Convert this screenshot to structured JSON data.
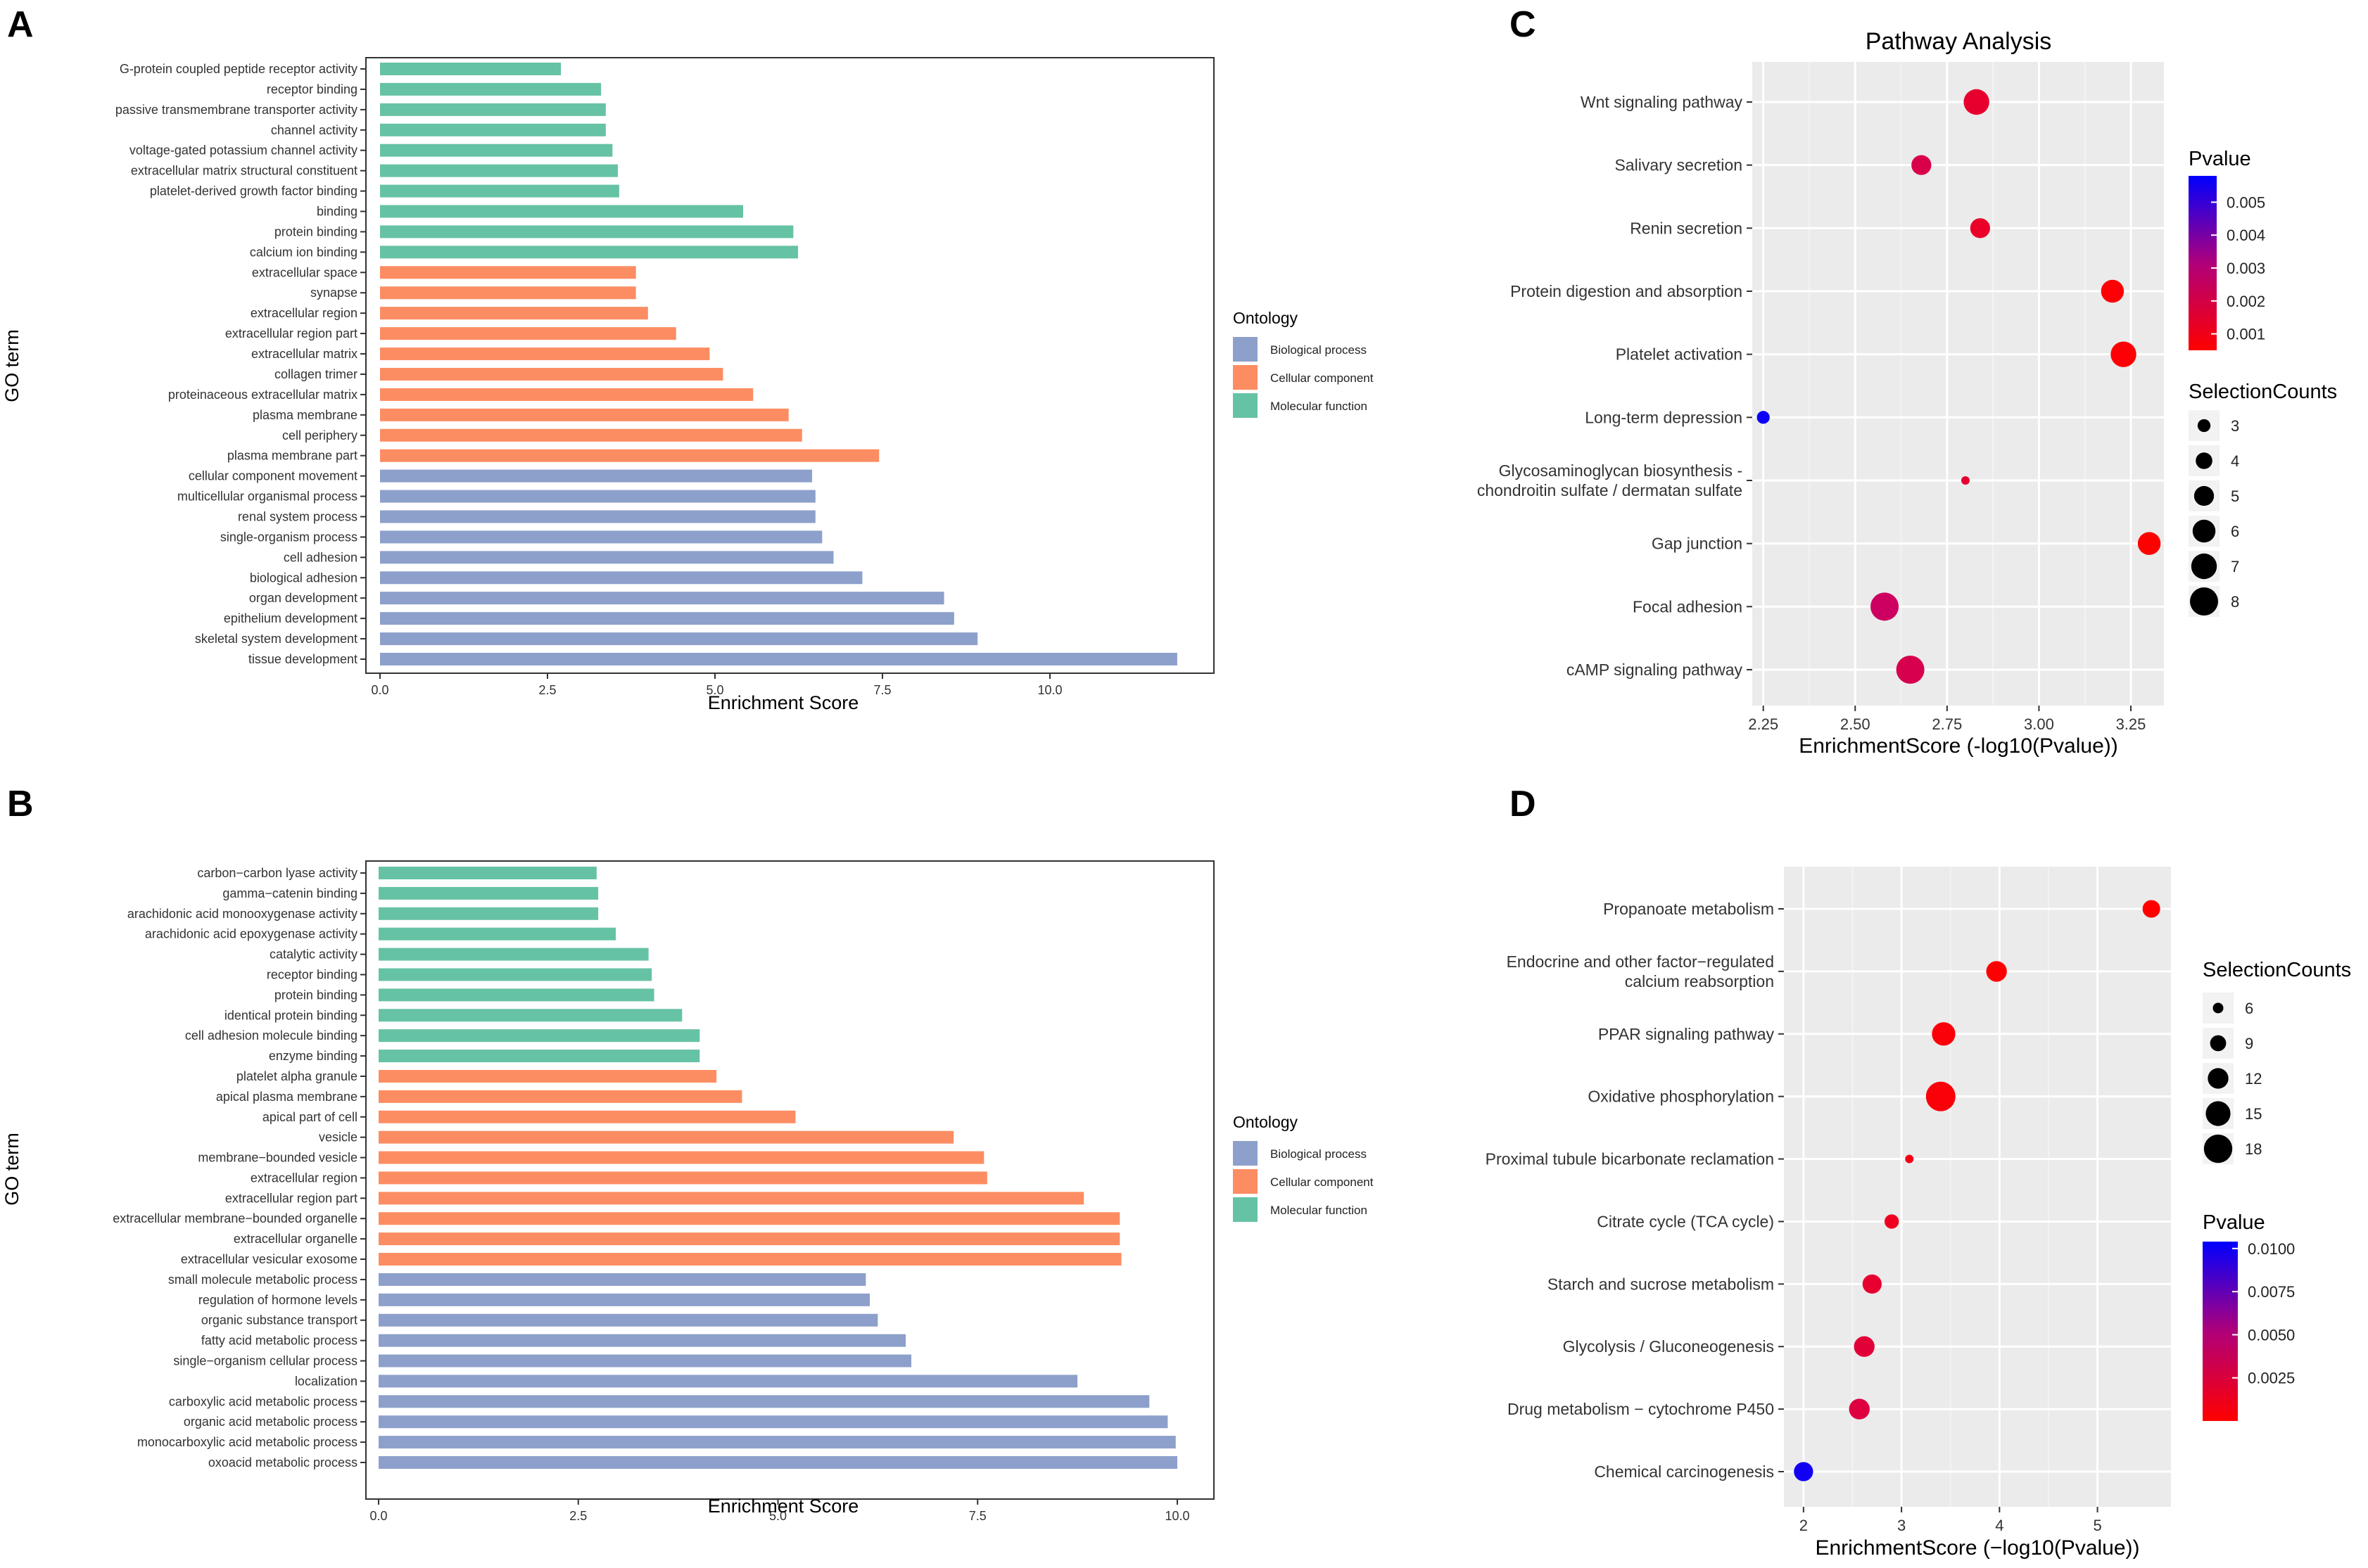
{
  "colors": {
    "biological_process": "#8da0cb",
    "cellular_component": "#fc8d62",
    "molecular_function": "#66c2a5",
    "panel_bg": "#ebebeb",
    "grid_major": "#ffffff",
    "pvalue_low": "#ff0000",
    "pvalue_high": "#0000ff"
  },
  "chart_data": [
    {
      "panel": "A",
      "type": "bar",
      "orientation": "horizontal",
      "xlabel": "Enrichment Score",
      "ylabel": "GO term",
      "xlim": [
        0,
        12
      ],
      "xticks": [
        "0.0",
        "2.5",
        "5.0",
        "7.5",
        "10.0"
      ],
      "xtick_values": [
        0,
        2.5,
        5,
        7.5,
        10
      ],
      "legend": {
        "title": "Ontology",
        "items": [
          {
            "label": "Biological process",
            "key": "biological_process"
          },
          {
            "label": "Cellular component",
            "key": "cellular_component"
          },
          {
            "label": "Molecular function",
            "key": "molecular_function"
          }
        ]
      },
      "bars": [
        {
          "term": "G-protein coupled peptide receptor activity",
          "value": 2.7,
          "ontology": "molecular_function"
        },
        {
          "term": "receptor binding",
          "value": 3.3,
          "ontology": "molecular_function"
        },
        {
          "term": "passive transmembrane transporter activity",
          "value": 3.37,
          "ontology": "molecular_function"
        },
        {
          "term": "channel activity",
          "value": 3.37,
          "ontology": "molecular_function"
        },
        {
          "term": "voltage-gated potassium channel activity",
          "value": 3.47,
          "ontology": "molecular_function"
        },
        {
          "term": "extracellular matrix structural constituent",
          "value": 3.55,
          "ontology": "molecular_function"
        },
        {
          "term": "platelet-derived growth factor binding",
          "value": 3.57,
          "ontology": "molecular_function"
        },
        {
          "term": "binding",
          "value": 5.42,
          "ontology": "molecular_function"
        },
        {
          "term": "protein binding",
          "value": 6.17,
          "ontology": "molecular_function"
        },
        {
          "term": "calcium ion binding",
          "value": 6.24,
          "ontology": "molecular_function"
        },
        {
          "term": "extracellular space",
          "value": 3.82,
          "ontology": "cellular_component"
        },
        {
          "term": "synapse",
          "value": 3.82,
          "ontology": "cellular_component"
        },
        {
          "term": "extracellular region",
          "value": 4.0,
          "ontology": "cellular_component"
        },
        {
          "term": "extracellular region part",
          "value": 4.42,
          "ontology": "cellular_component"
        },
        {
          "term": "extracellular matrix",
          "value": 4.92,
          "ontology": "cellular_component"
        },
        {
          "term": "collagen trimer",
          "value": 5.12,
          "ontology": "cellular_component"
        },
        {
          "term": "proteinaceous extracellular matrix",
          "value": 5.57,
          "ontology": "cellular_component"
        },
        {
          "term": "plasma membrane",
          "value": 6.1,
          "ontology": "cellular_component"
        },
        {
          "term": "cell periphery",
          "value": 6.3,
          "ontology": "cellular_component"
        },
        {
          "term": "plasma membrane part",
          "value": 7.45,
          "ontology": "cellular_component"
        },
        {
          "term": "cellular component movement",
          "value": 6.45,
          "ontology": "biological_process"
        },
        {
          "term": "multicellular organismal process",
          "value": 6.5,
          "ontology": "biological_process"
        },
        {
          "term": "renal system process",
          "value": 6.5,
          "ontology": "biological_process"
        },
        {
          "term": "single-organism process",
          "value": 6.6,
          "ontology": "biological_process"
        },
        {
          "term": "cell adhesion",
          "value": 6.77,
          "ontology": "biological_process"
        },
        {
          "term": "biological adhesion",
          "value": 7.2,
          "ontology": "biological_process"
        },
        {
          "term": "organ development",
          "value": 8.42,
          "ontology": "biological_process"
        },
        {
          "term": "epithelium development",
          "value": 8.57,
          "ontology": "biological_process"
        },
        {
          "term": "skeletal system development",
          "value": 8.92,
          "ontology": "biological_process"
        },
        {
          "term": "tissue development",
          "value": 11.9,
          "ontology": "biological_process"
        }
      ]
    },
    {
      "panel": "B",
      "type": "bar",
      "orientation": "horizontal",
      "xlabel": "Enrichment Score",
      "ylabel": "GO term",
      "xlim": [
        0,
        10
      ],
      "xticks": [
        "0.0",
        "2.5",
        "5.0",
        "7.5",
        "10.0"
      ],
      "xtick_values": [
        0,
        2.5,
        5,
        7.5,
        10
      ],
      "legend": {
        "title": "Ontology",
        "items": [
          {
            "label": "Biological process",
            "key": "biological_process"
          },
          {
            "label": "Cellular component",
            "key": "cellular_component"
          },
          {
            "label": "Molecular function",
            "key": "molecular_function"
          }
        ]
      },
      "bars": [
        {
          "term": "carbon−carbon lyase activity",
          "value": 2.73,
          "ontology": "molecular_function"
        },
        {
          "term": "gamma−catenin binding",
          "value": 2.75,
          "ontology": "molecular_function"
        },
        {
          "term": "arachidonic acid monooxygenase activity",
          "value": 2.75,
          "ontology": "molecular_function"
        },
        {
          "term": "arachidonic acid epoxygenase activity",
          "value": 2.97,
          "ontology": "molecular_function"
        },
        {
          "term": "catalytic activity",
          "value": 3.38,
          "ontology": "molecular_function"
        },
        {
          "term": "receptor binding",
          "value": 3.42,
          "ontology": "molecular_function"
        },
        {
          "term": "protein binding",
          "value": 3.45,
          "ontology": "molecular_function"
        },
        {
          "term": "identical protein binding",
          "value": 3.8,
          "ontology": "molecular_function"
        },
        {
          "term": "cell adhesion molecule binding",
          "value": 4.02,
          "ontology": "molecular_function"
        },
        {
          "term": "enzyme binding",
          "value": 4.02,
          "ontology": "molecular_function"
        },
        {
          "term": "platelet alpha granule",
          "value": 4.23,
          "ontology": "cellular_component"
        },
        {
          "term": "apical plasma membrane",
          "value": 4.55,
          "ontology": "cellular_component"
        },
        {
          "term": "apical part of cell",
          "value": 5.22,
          "ontology": "cellular_component"
        },
        {
          "term": "vesicle",
          "value": 7.2,
          "ontology": "cellular_component"
        },
        {
          "term": "membrane−bounded vesicle",
          "value": 7.58,
          "ontology": "cellular_component"
        },
        {
          "term": "extracellular region",
          "value": 7.62,
          "ontology": "cellular_component"
        },
        {
          "term": "extracellular region part",
          "value": 8.83,
          "ontology": "cellular_component"
        },
        {
          "term": "extracellular membrane−bounded organelle",
          "value": 9.28,
          "ontology": "cellular_component"
        },
        {
          "term": "extracellular organelle",
          "value": 9.28,
          "ontology": "cellular_component"
        },
        {
          "term": "extracellular vesicular exosome",
          "value": 9.3,
          "ontology": "cellular_component"
        },
        {
          "term": "small molecule metabolic process",
          "value": 6.1,
          "ontology": "biological_process"
        },
        {
          "term": "regulation of hormone levels",
          "value": 6.15,
          "ontology": "biological_process"
        },
        {
          "term": "organic substance transport",
          "value": 6.25,
          "ontology": "biological_process"
        },
        {
          "term": "fatty acid metabolic process",
          "value": 6.6,
          "ontology": "biological_process"
        },
        {
          "term": "single−organism cellular process",
          "value": 6.67,
          "ontology": "biological_process"
        },
        {
          "term": "localization",
          "value": 8.75,
          "ontology": "biological_process"
        },
        {
          "term": "carboxylic acid metabolic process",
          "value": 9.65,
          "ontology": "biological_process"
        },
        {
          "term": "organic acid metabolic process",
          "value": 9.88,
          "ontology": "biological_process"
        },
        {
          "term": "monocarboxylic acid metabolic process",
          "value": 9.98,
          "ontology": "biological_process"
        },
        {
          "term": "oxoacid metabolic process",
          "value": 10.0,
          "ontology": "biological_process"
        }
      ]
    },
    {
      "panel": "C",
      "type": "scatter",
      "subtype": "bubble",
      "title": "Pathway Analysis",
      "xlabel": "EnrichmentScore (-log10(Pvalue))",
      "xlim": [
        2.22,
        3.34
      ],
      "xticks": [
        "2.25",
        "2.50",
        "2.75",
        "3.00",
        "3.25"
      ],
      "xtick_values": [
        2.25,
        2.5,
        2.75,
        3.0,
        3.25
      ],
      "pvalue_range": [
        0.0005,
        0.0058
      ],
      "size_range": [
        3,
        8
      ],
      "legend_pvalue": {
        "title": "Pvalue",
        "labels": [
          "0.005",
          "0.004",
          "0.003",
          "0.002",
          "0.001"
        ],
        "values": [
          0.005,
          0.004,
          0.003,
          0.002,
          0.001
        ]
      },
      "legend_size": {
        "title": "SelectionCounts",
        "labels": [
          "3",
          "4",
          "5",
          "6",
          "7",
          "8"
        ],
        "values": [
          3,
          4,
          5,
          6,
          7,
          8
        ]
      },
      "points": [
        {
          "label": "Wnt signaling pathway",
          "x": 2.83,
          "count": 7,
          "pvalue": 0.0015
        },
        {
          "label": "Salivary secretion",
          "x": 2.68,
          "count": 5,
          "pvalue": 0.0021
        },
        {
          "label": "Renin secretion",
          "x": 2.84,
          "count": 5,
          "pvalue": 0.0014
        },
        {
          "label": "Protein digestion and absorption",
          "x": 3.2,
          "count": 6,
          "pvalue": 0.0006
        },
        {
          "label": "Platelet activation",
          "x": 3.23,
          "count": 7,
          "pvalue": 0.0006
        },
        {
          "label": "Long-term depression",
          "x": 2.25,
          "count": 3,
          "pvalue": 0.0056
        },
        {
          "label": "Glycosaminoglycan biosynthesis -",
          "label_line2": "chondroitin sulfate / dermatan sulfate",
          "x": 2.8,
          "count": 2,
          "pvalue": 0.0016
        },
        {
          "label": "Gap junction",
          "x": 3.3,
          "count": 6,
          "pvalue": 0.0005
        },
        {
          "label": "Focal adhesion",
          "x": 2.58,
          "count": 8,
          "pvalue": 0.0026
        },
        {
          "label": "cAMP signaling pathway",
          "x": 2.65,
          "count": 8,
          "pvalue": 0.0022
        }
      ]
    },
    {
      "panel": "D",
      "type": "scatter",
      "subtype": "bubble",
      "xlabel": "EnrichmentScore (−log10(Pvalue))",
      "xlim": [
        1.8,
        5.75
      ],
      "xticks": [
        "2",
        "3",
        "4",
        "5"
      ],
      "xtick_values": [
        2,
        3,
        4,
        5
      ],
      "pvalue_range": [
        0.0,
        0.0104
      ],
      "size_range": [
        6,
        18
      ],
      "legend_size": {
        "title": "SelectionCounts",
        "labels": [
          "6",
          "9",
          "12",
          "15",
          "18"
        ],
        "values": [
          6,
          9,
          12,
          15,
          18
        ]
      },
      "legend_pvalue": {
        "title": "Pvalue",
        "labels": [
          "0.0100",
          "0.0075",
          "0.0050",
          "0.0025"
        ],
        "values": [
          0.01,
          0.0075,
          0.005,
          0.0025
        ]
      },
      "points": [
        {
          "label": "Propanoate metabolism",
          "x": 5.55,
          "count": 10,
          "pvalue": 1e-05
        },
        {
          "label": "Endocrine and other factor−regulated",
          "label_line2": "calcium reabsorption",
          "x": 3.97,
          "count": 12,
          "pvalue": 0.0001
        },
        {
          "label": "PPAR signaling pathway",
          "x": 3.43,
          "count": 14,
          "pvalue": 0.0004
        },
        {
          "label": "Oxidative phosphorylation",
          "x": 3.4,
          "count": 19,
          "pvalue": 0.0004
        },
        {
          "label": "Proximal tubule bicarbonate reclamation",
          "x": 3.08,
          "count": 5,
          "pvalue": 0.0008
        },
        {
          "label": "Citrate cycle (TCA cycle)",
          "x": 2.9,
          "count": 8,
          "pvalue": 0.0013
        },
        {
          "label": "Starch and sucrose metabolism",
          "x": 2.7,
          "count": 11,
          "pvalue": 0.002
        },
        {
          "label": "Glycolysis / Gluconeogenesis",
          "x": 2.62,
          "count": 12,
          "pvalue": 0.0024
        },
        {
          "label": "Drug metabolism − cytochrome P450",
          "x": 2.57,
          "count": 12,
          "pvalue": 0.0027
        },
        {
          "label": "Chemical carcinogenesis",
          "x": 2.0,
          "count": 11,
          "pvalue": 0.0099
        }
      ]
    }
  ]
}
